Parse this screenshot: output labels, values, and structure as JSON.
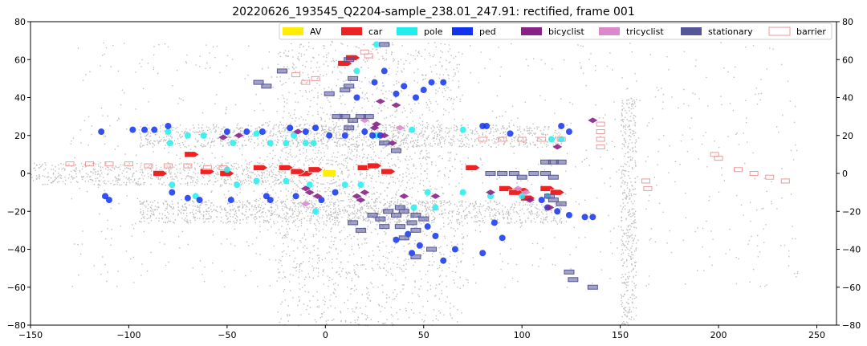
{
  "chart_data": {
    "type": "scatter",
    "title": "20220626_193545_Q2204-sample_238.01_247.91: rectified, frame 001",
    "xlim": [
      -150,
      260
    ],
    "ylim": [
      -80,
      80
    ],
    "x_ticks": [
      -150,
      -100,
      -50,
      0,
      50,
      100,
      150,
      200,
      250
    ],
    "y_ticks": [
      -80,
      -60,
      -40,
      -20,
      0,
      20,
      40,
      60,
      80
    ],
    "y_ticks_right": true,
    "grid": false,
    "legend_position": "top-right",
    "legend": [
      {
        "label": "AV",
        "color": "#ffee00"
      },
      {
        "label": "car",
        "color": "#ee2222"
      },
      {
        "label": "pole",
        "color": "#22eeee"
      },
      {
        "label": "ped",
        "color": "#1133ee"
      },
      {
        "label": "bicyclist",
        "color": "#882288"
      },
      {
        "label": "tricyclist",
        "color": "#dd88cc"
      },
      {
        "label": "stationary",
        "color": "#555599"
      },
      {
        "label": "barrier",
        "color": "#ee9999"
      }
    ],
    "series": [
      {
        "name": "AV",
        "color": "#ffee00",
        "shape": "rect",
        "points": [
          [
            2,
            0
          ]
        ]
      },
      {
        "name": "car",
        "color": "#ee2222",
        "shape": "car",
        "points": [
          [
            -68,
            10
          ],
          [
            -84,
            0
          ],
          [
            -60,
            1
          ],
          [
            -50,
            0
          ],
          [
            -33,
            3
          ],
          [
            -20,
            3
          ],
          [
            -10,
            0
          ],
          [
            -14,
            1
          ],
          [
            -5,
            2
          ],
          [
            20,
            3
          ],
          [
            25,
            4
          ],
          [
            32,
            1
          ],
          [
            75,
            3
          ],
          [
            92,
            -8
          ],
          [
            100,
            -9
          ],
          [
            113,
            -8
          ],
          [
            118,
            -10
          ],
          [
            10,
            58
          ],
          [
            14,
            61
          ],
          [
            97,
            -10
          ],
          [
            103,
            -13
          ]
        ]
      },
      {
        "name": "pole",
        "color": "#22eeee",
        "shape": "circle",
        "points": [
          [
            -79,
            16
          ],
          [
            -78,
            -6
          ],
          [
            -70,
            20
          ],
          [
            -62,
            20
          ],
          [
            -47,
            16
          ],
          [
            -28,
            16
          ],
          [
            -20,
            16
          ],
          [
            -10,
            16
          ],
          [
            -6,
            16
          ],
          [
            -16,
            20
          ],
          [
            -35,
            21
          ],
          [
            -80,
            22
          ],
          [
            -66,
            -12
          ],
          [
            -50,
            2
          ],
          [
            -45,
            -6
          ],
          [
            -35,
            -4
          ],
          [
            -20,
            -4
          ],
          [
            -8,
            -6
          ],
          [
            10,
            -6
          ],
          [
            18,
            -6
          ],
          [
            26,
            20
          ],
          [
            44,
            23
          ],
          [
            52,
            -10
          ],
          [
            56,
            -18
          ],
          [
            70,
            -10
          ],
          [
            70,
            23
          ],
          [
            84,
            -12
          ],
          [
            100,
            -12
          ],
          [
            113,
            -12
          ],
          [
            115,
            18
          ],
          [
            120,
            18
          ],
          [
            16,
            54
          ],
          [
            26,
            68
          ],
          [
            45,
            -18
          ],
          [
            -5,
            -20
          ]
        ]
      },
      {
        "name": "ped",
        "color": "#1133ee",
        "shape": "circle",
        "points": [
          [
            -114,
            22
          ],
          [
            -112,
            -12
          ],
          [
            -110,
            -14
          ],
          [
            -98,
            23
          ],
          [
            -92,
            23
          ],
          [
            -87,
            23
          ],
          [
            -80,
            25
          ],
          [
            -78,
            -10
          ],
          [
            -70,
            -13
          ],
          [
            -64,
            -14
          ],
          [
            -50,
            22
          ],
          [
            -48,
            -14
          ],
          [
            -40,
            22
          ],
          [
            -32,
            22
          ],
          [
            -18,
            24
          ],
          [
            -10,
            22
          ],
          [
            -5,
            24
          ],
          [
            2,
            20
          ],
          [
            -30,
            -12
          ],
          [
            -28,
            -14
          ],
          [
            -15,
            -12
          ],
          [
            -2,
            -14
          ],
          [
            5,
            -10
          ],
          [
            10,
            20
          ],
          [
            16,
            40
          ],
          [
            20,
            22
          ],
          [
            24,
            20
          ],
          [
            28,
            20
          ],
          [
            25,
            48
          ],
          [
            36,
            42
          ],
          [
            40,
            46
          ],
          [
            46,
            40
          ],
          [
            50,
            44
          ],
          [
            54,
            48
          ],
          [
            48,
            -38
          ],
          [
            44,
            -42
          ],
          [
            36,
            -35
          ],
          [
            42,
            -32
          ],
          [
            52,
            -28
          ],
          [
            56,
            -33
          ],
          [
            60,
            -46
          ],
          [
            66,
            -40
          ],
          [
            80,
            -42
          ],
          [
            86,
            -26
          ],
          [
            90,
            -34
          ],
          [
            80,
            25
          ],
          [
            82,
            25
          ],
          [
            94,
            21
          ],
          [
            120,
            25
          ],
          [
            124,
            22
          ],
          [
            110,
            -14
          ],
          [
            113,
            -18
          ],
          [
            118,
            -20
          ],
          [
            124,
            -22
          ],
          [
            132,
            -23
          ],
          [
            136,
            -23
          ],
          [
            60,
            48
          ],
          [
            30,
            54
          ]
        ]
      },
      {
        "name": "bicyclist",
        "color": "#882288",
        "shape": "diamond",
        "points": [
          [
            -52,
            19
          ],
          [
            -44,
            20
          ],
          [
            -14,
            22
          ],
          [
            -10,
            -8
          ],
          [
            -8,
            -10
          ],
          [
            25,
            24
          ],
          [
            30,
            20
          ],
          [
            34,
            16
          ],
          [
            36,
            36
          ],
          [
            28,
            38
          ],
          [
            26,
            26
          ],
          [
            16,
            -12
          ],
          [
            18,
            -14
          ],
          [
            40,
            -12
          ],
          [
            56,
            -12
          ],
          [
            84,
            -10
          ],
          [
            114,
            -18
          ],
          [
            118,
            14
          ],
          [
            136,
            28
          ],
          [
            104,
            -14
          ],
          [
            20,
            -10
          ],
          [
            -4,
            -12
          ]
        ]
      },
      {
        "name": "tricyclist",
        "color": "#dd88cc",
        "shape": "diamond",
        "points": [
          [
            -10,
            -16
          ],
          [
            20,
            28
          ],
          [
            38,
            24
          ],
          [
            98,
            -8
          ],
          [
            102,
            -10
          ]
        ]
      },
      {
        "name": "stationary",
        "color": "#555599",
        "shape": "rect",
        "points": [
          [
            12,
            60
          ],
          [
            30,
            68
          ],
          [
            2,
            42
          ],
          [
            10,
            44
          ],
          [
            12,
            46
          ],
          [
            14,
            50
          ],
          [
            6,
            30
          ],
          [
            10,
            30
          ],
          [
            14,
            28
          ],
          [
            18,
            30
          ],
          [
            12,
            24
          ],
          [
            22,
            30
          ],
          [
            30,
            16
          ],
          [
            36,
            12
          ],
          [
            84,
            0
          ],
          [
            90,
            0
          ],
          [
            96,
            0
          ],
          [
            100,
            -2
          ],
          [
            106,
            0
          ],
          [
            112,
            0
          ],
          [
            116,
            -2
          ],
          [
            112,
            6
          ],
          [
            116,
            6
          ],
          [
            120,
            6
          ],
          [
            114,
            -12
          ],
          [
            116,
            -14
          ],
          [
            120,
            -16
          ],
          [
            40,
            -20
          ],
          [
            46,
            -22
          ],
          [
            50,
            -24
          ],
          [
            44,
            -26
          ],
          [
            46,
            -30
          ],
          [
            38,
            -18
          ],
          [
            24,
            -22
          ],
          [
            28,
            -24
          ],
          [
            32,
            -20
          ],
          [
            36,
            -22
          ],
          [
            30,
            -28
          ],
          [
            38,
            -28
          ],
          [
            40,
            -34
          ],
          [
            46,
            -44
          ],
          [
            54,
            -40
          ],
          [
            124,
            -52
          ],
          [
            126,
            -56
          ],
          [
            136,
            -60
          ],
          [
            -22,
            54
          ],
          [
            -30,
            46
          ],
          [
            -34,
            48
          ],
          [
            14,
            -26
          ],
          [
            18,
            -30
          ]
        ]
      },
      {
        "name": "barrier",
        "color": "#ee9999",
        "shape": "rect",
        "points": [
          [
            140,
            26
          ],
          [
            140,
            22
          ],
          [
            140,
            18
          ],
          [
            140,
            14
          ],
          [
            164,
            -8
          ],
          [
            163,
            -4
          ],
          [
            200,
            8
          ],
          [
            198,
            10
          ],
          [
            210,
            2
          ],
          [
            218,
            0
          ],
          [
            226,
            -2
          ],
          [
            234,
            -4
          ],
          [
            -52,
            3
          ],
          [
            -60,
            3
          ],
          [
            -70,
            4
          ],
          [
            -80,
            4
          ],
          [
            -90,
            4
          ],
          [
            -100,
            5
          ],
          [
            -110,
            5
          ],
          [
            -120,
            5
          ],
          [
            -130,
            5
          ],
          [
            -15,
            52
          ],
          [
            -10,
            48
          ],
          [
            -5,
            50
          ],
          [
            20,
            64
          ],
          [
            22,
            62
          ],
          [
            80,
            18
          ],
          [
            90,
            18
          ],
          [
            100,
            18
          ],
          [
            110,
            18
          ],
          [
            120,
            18
          ]
        ]
      }
    ]
  }
}
